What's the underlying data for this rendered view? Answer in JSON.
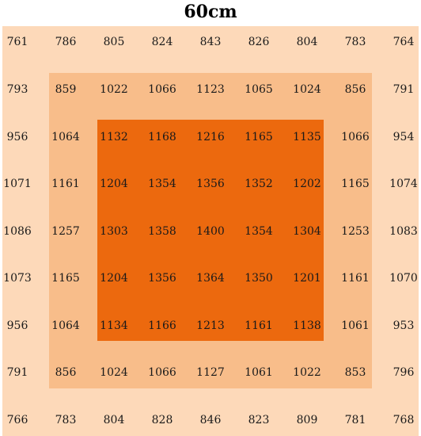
{
  "title": "60cm",
  "chart_data": {
    "type": "heatmap",
    "title": "60cm",
    "rows": [
      [
        761,
        786,
        805,
        824,
        843,
        826,
        804,
        783,
        764
      ],
      [
        793,
        859,
        1022,
        1066,
        1123,
        1065,
        1024,
        856,
        791
      ],
      [
        956,
        1064,
        1132,
        1168,
        1216,
        1165,
        1135,
        1066,
        954
      ],
      [
        1071,
        1161,
        1204,
        1354,
        1356,
        1352,
        1202,
        1165,
        1074
      ],
      [
        1086,
        1257,
        1303,
        1358,
        1400,
        1354,
        1304,
        1253,
        1083
      ],
      [
        1073,
        1165,
        1204,
        1356,
        1364,
        1350,
        1201,
        1161,
        1070
      ],
      [
        956,
        1064,
        1134,
        1166,
        1213,
        1161,
        1138,
        1061,
        953
      ],
      [
        791,
        856,
        1024,
        1066,
        1127,
        1061,
        1022,
        853,
        796
      ],
      [
        766,
        783,
        804,
        828,
        846,
        823,
        809,
        781,
        768
      ]
    ],
    "zone_colors": {
      "outer": "#fdd9b9",
      "middle": "#f8bd8a",
      "inner": "#ec690e"
    }
  }
}
